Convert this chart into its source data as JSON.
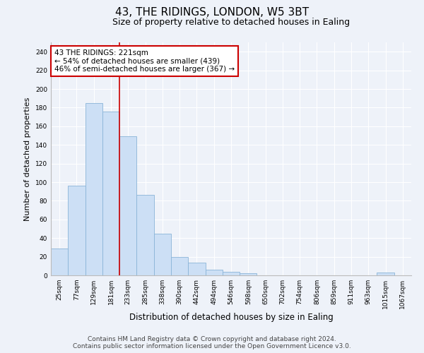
{
  "title": "43, THE RIDINGS, LONDON, W5 3BT",
  "subtitle": "Size of property relative to detached houses in Ealing",
  "xlabel": "Distribution of detached houses by size in Ealing",
  "ylabel": "Number of detached properties",
  "bar_color": "#ccdff5",
  "bar_edge_color": "#8ab4d8",
  "categories": [
    "25sqm",
    "77sqm",
    "129sqm",
    "181sqm",
    "233sqm",
    "285sqm",
    "338sqm",
    "390sqm",
    "442sqm",
    "494sqm",
    "546sqm",
    "598sqm",
    "650sqm",
    "702sqm",
    "754sqm",
    "806sqm",
    "859sqm",
    "911sqm",
    "963sqm",
    "1015sqm",
    "1067sqm"
  ],
  "values": [
    29,
    96,
    185,
    176,
    149,
    86,
    45,
    20,
    14,
    6,
    4,
    2,
    0,
    0,
    0,
    0,
    0,
    0,
    0,
    3,
    0
  ],
  "vline_x": 3.5,
  "vline_color": "#cc0000",
  "annotation_text": "43 THE RIDINGS: 221sqm\n← 54% of detached houses are smaller (439)\n46% of semi-detached houses are larger (367) →",
  "annotation_box_color": "#ffffff",
  "annotation_box_edge_color": "#cc0000",
  "ylim": [
    0,
    250
  ],
  "yticks": [
    0,
    20,
    40,
    60,
    80,
    100,
    120,
    140,
    160,
    180,
    200,
    220,
    240
  ],
  "footer_line1": "Contains HM Land Registry data © Crown copyright and database right 2024.",
  "footer_line2": "Contains public sector information licensed under the Open Government Licence v3.0.",
  "background_color": "#eef2f9",
  "grid_color": "#ffffff",
  "title_fontsize": 11,
  "subtitle_fontsize": 9,
  "xlabel_fontsize": 8.5,
  "ylabel_fontsize": 8,
  "tick_fontsize": 6.5,
  "annotation_fontsize": 7.5,
  "footer_fontsize": 6.5
}
